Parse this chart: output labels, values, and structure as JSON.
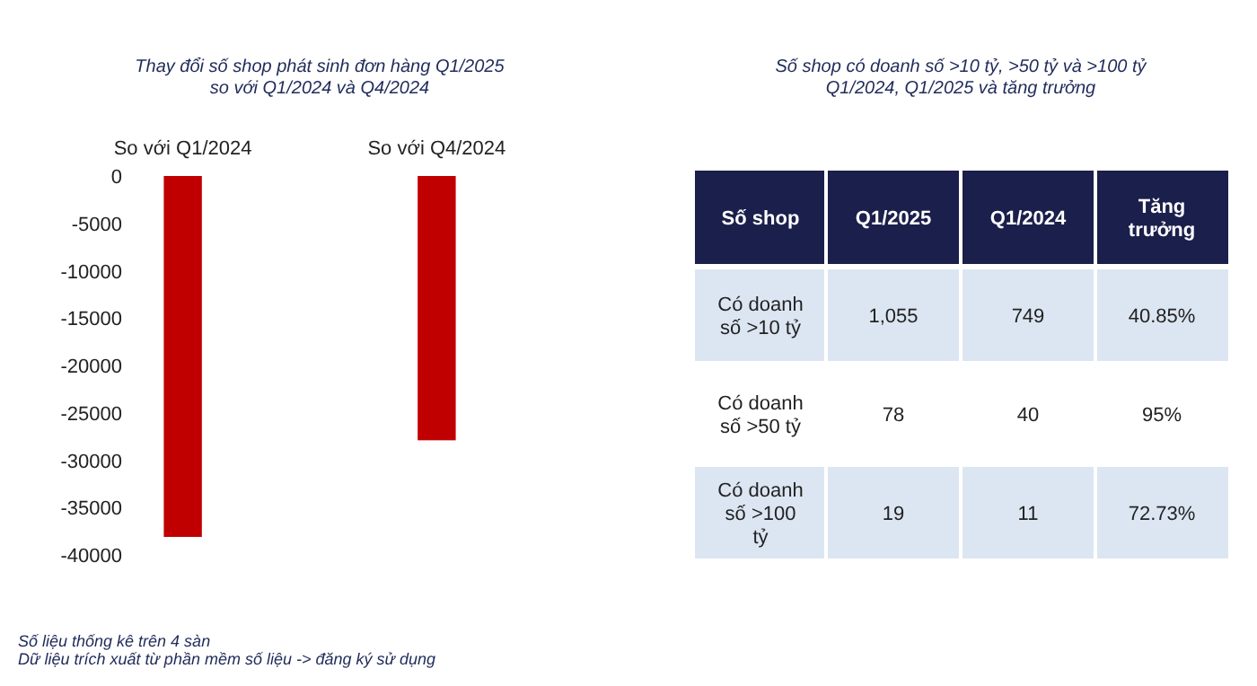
{
  "chart_data": [
    {
      "type": "bar",
      "title": "Thay đổi số shop phát sinh đơn hàng Q1/2025\nso với Q1/2024 và Q4/2024",
      "categories": [
        "So với Q1/2024",
        "So với Q4/2024"
      ],
      "values": [
        -38100,
        -27900
      ],
      "color": "#c00000",
      "ylim": [
        -40000,
        0
      ],
      "yticks": [
        0,
        -5000,
        -10000,
        -15000,
        -20000,
        -25000,
        -30000,
        -35000,
        -40000
      ],
      "grid": false,
      "annotations": [
        "Số liệu thống kê trên 4 sàn",
        "Dữ liệu trích xuất từ phần mềm số liệu -> đăng ký sử dụng"
      ]
    },
    {
      "type": "other",
      "title": "Số shop có doanh số >10 tỷ, >50 tỷ và >100 tỷ\nQ1/2024, Q1/2025 và tăng trưởng",
      "categories": [
        "Số shop",
        "Q1/2025",
        "Q1/2024",
        "Tăng trưởng"
      ],
      "y_categories": [
        "Có doanh số >10 tỷ",
        "Có doanh số >50 tỷ",
        "Có doanh số >100 tỷ"
      ],
      "cell_labels": [
        [
          "1,055",
          "749",
          "40.85%"
        ],
        [
          "78",
          "40",
          "95%"
        ],
        [
          "19",
          "11",
          "72.73%"
        ]
      ]
    }
  ]
}
